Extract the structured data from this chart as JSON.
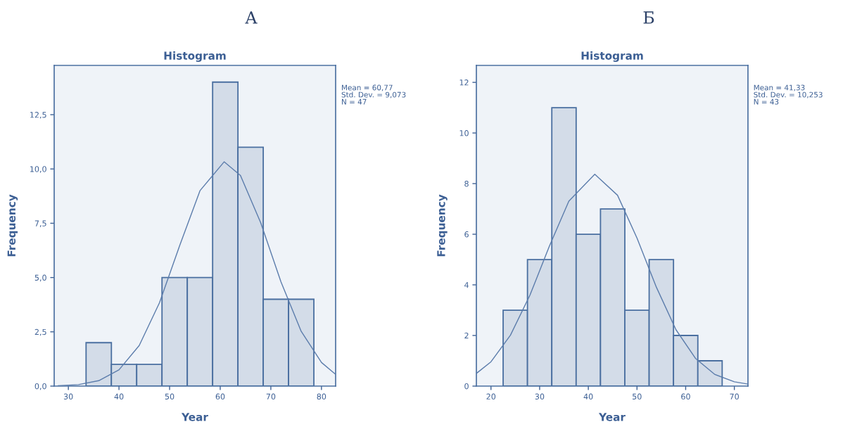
{
  "chart_data": [
    {
      "type": "histogram",
      "title": "А",
      "subtitle": "Histogram",
      "xlabel": "Year",
      "ylabel": "Frequency",
      "series": [
        {
          "color": "#d3dce8",
          "bins": [
            33.5,
            38.5,
            43.5,
            48.5,
            53.5,
            58.5,
            63.5,
            68.5,
            73.5,
            78.5
          ],
          "values": [
            2,
            1,
            1,
            5,
            5,
            14,
            11,
            4,
            4
          ]
        },
        {
          "type": "line",
          "color": "#5b7cab",
          "x": [
            28,
            32,
            36,
            40,
            44,
            48,
            52,
            56,
            60.77,
            64,
            68,
            72,
            76,
            80,
            82.8
          ],
          "values": [
            0.02,
            0.07,
            0.25,
            0.75,
            1.87,
            3.84,
            6.48,
            9.0,
            10.33,
            9.7,
            7.52,
            4.8,
            2.52,
            1.09,
            0.54
          ]
        }
      ],
      "xlim": [
        27.2,
        82.8
      ],
      "xticks": [
        30,
        40,
        50,
        60,
        70,
        80
      ],
      "ylim": [
        0,
        14.77
      ],
      "yticks": [
        {
          "value": 0,
          "label": "0,0"
        },
        {
          "value": 2.5,
          "label": "2,5"
        },
        {
          "value": 5,
          "label": "5,0"
        },
        {
          "value": 7.5,
          "label": "7,5"
        },
        {
          "value": 10,
          "label": "10,0"
        },
        {
          "value": 12.5,
          "label": "12,5"
        }
      ],
      "annotations": [
        "Mean = 60,77\nStd. Dev. = 9,073\nN = 47"
      ],
      "grid": false,
      "legend": false
    },
    {
      "type": "histogram",
      "title": "Б",
      "subtitle": "Histogram",
      "xlabel": "Year",
      "ylabel": "Frequency",
      "series": [
        {
          "color": "#d3dce8",
          "bins": [
            22.5,
            27.5,
            32.5,
            37.5,
            42.5,
            47.5,
            52.5,
            57.5,
            62.5,
            67.5
          ],
          "values": [
            3,
            5,
            11,
            6,
            7,
            3,
            5,
            2,
            1
          ]
        },
        {
          "type": "line",
          "color": "#5b7cab",
          "x": [
            17,
            20,
            24,
            28,
            32,
            36,
            41.33,
            46,
            50,
            54,
            58,
            62,
            66,
            70,
            72.8
          ],
          "values": [
            0.5,
            0.96,
            2.01,
            3.59,
            5.53,
            7.31,
            8.37,
            7.54,
            5.85,
            3.9,
            2.23,
            1.1,
            0.46,
            0.17,
            0.08
          ]
        }
      ],
      "xlim": [
        17,
        72.8
      ],
      "xticks": [
        20,
        30,
        40,
        50,
        60,
        70
      ],
      "ylim": [
        0,
        12.67
      ],
      "yticks": [
        0,
        2,
        4,
        6,
        8,
        10,
        12
      ],
      "annotations": [
        "Mean = 41,33\nStd. Dev. = 10,253\nN = 43"
      ],
      "grid": false,
      "legend": false
    }
  ]
}
